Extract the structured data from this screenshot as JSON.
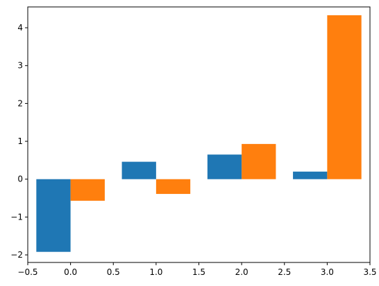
{
  "chart_data": {
    "type": "bar",
    "title": "",
    "xlabel": "",
    "ylabel": "",
    "xlim": [
      -0.5,
      3.5
    ],
    "ylim": [
      -2.2,
      4.55
    ],
    "grid": false,
    "bar_width": 0.4,
    "x": [
      0,
      1,
      2,
      3
    ],
    "series": [
      {
        "color": "#1f77b4",
        "offset": -0.2,
        "values": [
          -1.92,
          0.46,
          0.65,
          0.2
        ]
      },
      {
        "color": "#ff7f0e",
        "offset": 0.2,
        "values": [
          -0.57,
          -0.39,
          0.93,
          4.33
        ]
      }
    ],
    "xticks": [
      -0.5,
      0.0,
      0.5,
      1.0,
      1.5,
      2.0,
      2.5,
      3.0,
      3.5
    ],
    "xtick_labels": [
      "−0.5",
      "0.0",
      "0.5",
      "1.0",
      "1.5",
      "2.0",
      "2.5",
      "3.0",
      "3.5"
    ],
    "yticks": [
      -2,
      -1,
      0,
      1,
      2,
      3,
      4
    ],
    "ytick_labels": [
      "−2",
      "−1",
      "0",
      "1",
      "2",
      "3",
      "4"
    ]
  }
}
